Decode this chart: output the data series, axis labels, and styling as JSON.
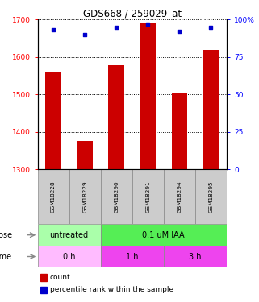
{
  "title": "GDS668 / 259029_at",
  "samples": [
    "GSM18228",
    "GSM18229",
    "GSM18290",
    "GSM18291",
    "GSM18294",
    "GSM18295"
  ],
  "bar_values": [
    1558,
    1375,
    1578,
    1690,
    1502,
    1618
  ],
  "percentile_values": [
    93,
    90,
    95,
    97,
    92,
    95
  ],
  "bar_color": "#cc0000",
  "dot_color": "#0000cc",
  "ylim_left": [
    1300,
    1700
  ],
  "ylim_right": [
    0,
    100
  ],
  "yticks_left": [
    1300,
    1400,
    1500,
    1600,
    1700
  ],
  "yticks_right": [
    0,
    25,
    50,
    75,
    100
  ],
  "ytick_right_labels": [
    "0",
    "25",
    "50",
    "75",
    "100%"
  ],
  "dose_labels": [
    {
      "label": "untreated",
      "color": "#aaffaa",
      "start": 0,
      "end": 2
    },
    {
      "label": "0.1 uM IAA",
      "color": "#55ee55",
      "start": 2,
      "end": 6
    }
  ],
  "time_labels": [
    {
      "label": "0 h",
      "color": "#ffbbff",
      "start": 0,
      "end": 2
    },
    {
      "label": "1 h",
      "color": "#ee44ee",
      "start": 2,
      "end": 4
    },
    {
      "label": "3 h",
      "color": "#ee44ee",
      "start": 4,
      "end": 6
    }
  ],
  "dose_row_label": "dose",
  "time_row_label": "time",
  "legend_count_label": "count",
  "legend_pct_label": "percentile rank within the sample",
  "bar_bottom": 1300
}
